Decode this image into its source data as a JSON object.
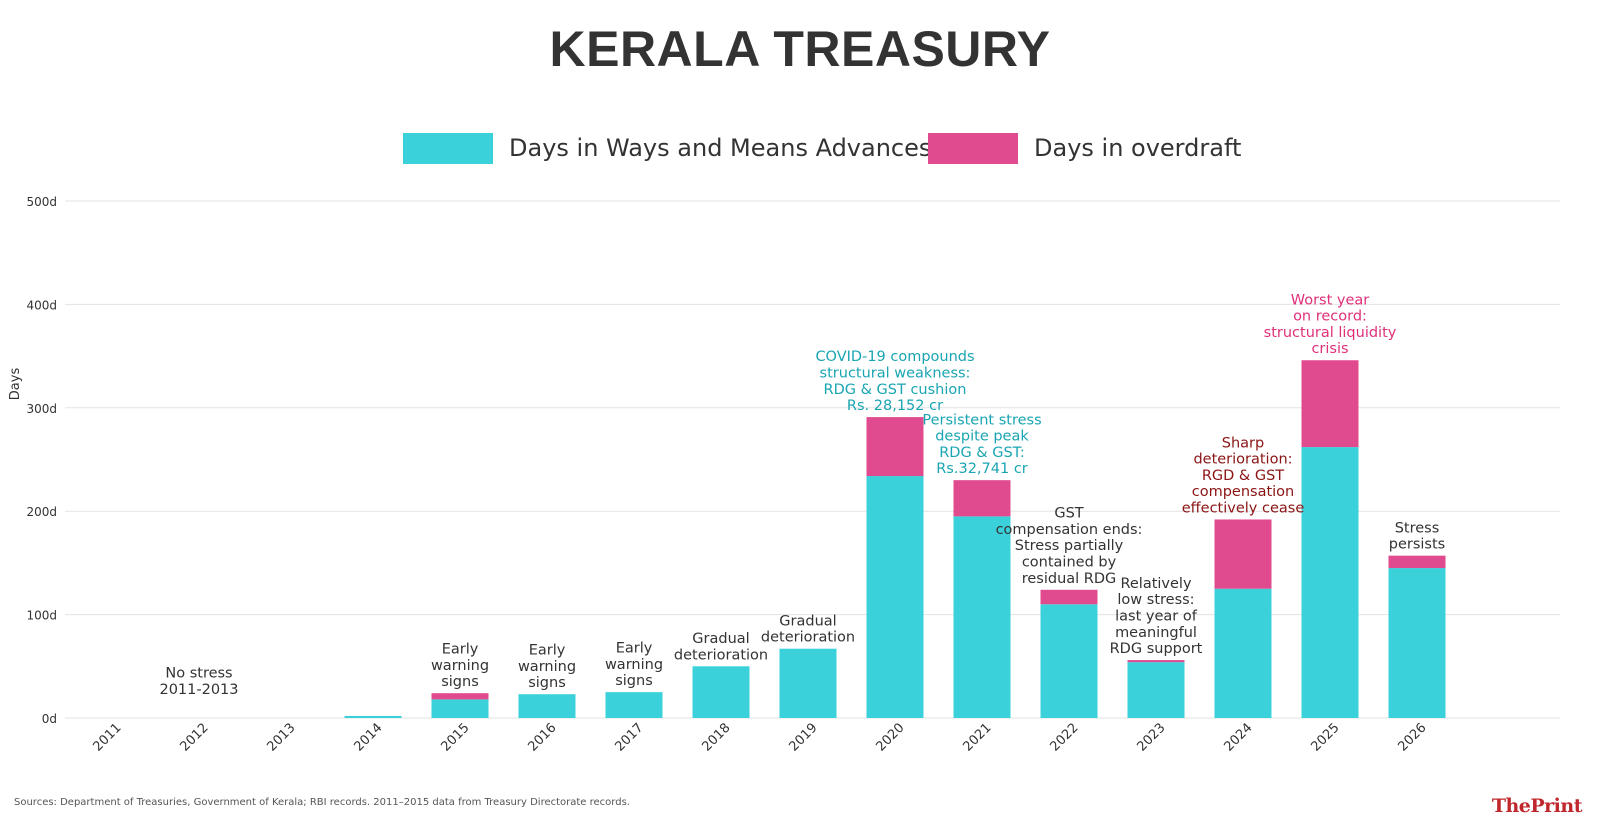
{
  "chart_data": {
    "type": "bar",
    "stacked": true,
    "title": "KERALA TREASURY",
    "ylabel": "Days",
    "ylim": [
      0,
      500
    ],
    "yticks": [
      0,
      100,
      200,
      300,
      400,
      500
    ],
    "ytick_labels": [
      "0d",
      "100d",
      "200d",
      "300d",
      "400d",
      "500d"
    ],
    "grid": true,
    "legend_position": "top-center",
    "categories": [
      "2011",
      "2012",
      "2013",
      "2014",
      "2015",
      "2016",
      "2017",
      "2018",
      "2019",
      "2020",
      "2021",
      "2022",
      "2023",
      "2024",
      "2025",
      "2026"
    ],
    "series": [
      {
        "name": "Days in Ways and Means Advances",
        "color": "#3ad1db",
        "values": [
          0,
          0,
          0,
          2,
          18,
          23,
          25,
          50,
          67,
          234,
          195,
          110,
          54,
          125,
          262,
          145
        ]
      },
      {
        "name": "Days in overdraft",
        "color": "#e04a8e",
        "values": [
          0,
          0,
          0,
          0,
          6,
          0,
          0,
          0,
          0,
          57,
          35,
          14,
          2,
          67,
          84,
          12
        ]
      }
    ],
    "annotations": [
      {
        "category": "2012",
        "color": "#333333",
        "lines": [
          "No stress",
          "2011-2013"
        ]
      },
      {
        "category": "2015",
        "color": "#333333",
        "lines": [
          "Early",
          "warning",
          "signs"
        ]
      },
      {
        "category": "2016",
        "color": "#333333",
        "lines": [
          "Early",
          "warning",
          "signs"
        ]
      },
      {
        "category": "2017",
        "color": "#333333",
        "lines": [
          "Early",
          "warning",
          "signs"
        ]
      },
      {
        "category": "2018",
        "color": "#333333",
        "lines": [
          "Gradual",
          "deterioration"
        ]
      },
      {
        "category": "2019",
        "color": "#333333",
        "lines": [
          "Gradual",
          "deterioration"
        ]
      },
      {
        "category": "2020",
        "color": "#1aa5b2",
        "lines": [
          "COVID-19 compounds",
          "structural weakness:",
          "RDG & GST cushion",
          "Rs. 28,152 cr"
        ]
      },
      {
        "category": "2021",
        "color": "#1aa5b2",
        "lines": [
          "Persistent stress",
          "despite peak",
          "RDG & GST:",
          "Rs.32,741 cr"
        ]
      },
      {
        "category": "2022",
        "color": "#333333",
        "lines": [
          "GST",
          "compensation ends:",
          "Stress partially",
          "contained by",
          "residual RDG"
        ]
      },
      {
        "category": "2023",
        "color": "#333333",
        "lines": [
          "Relatively",
          "low stress:",
          "last year of",
          "meaningful",
          "RDG support"
        ]
      },
      {
        "category": "2024",
        "color": "#8b1414",
        "lines": [
          "Sharp",
          "deterioration:",
          "RGD & GST",
          "compensation",
          "effectively cease"
        ]
      },
      {
        "category": "2025",
        "color": "#e0307a",
        "lines": [
          "Worst year",
          "on record:",
          "structural liquidity",
          "crisis"
        ]
      },
      {
        "category": "2026",
        "color": "#333333",
        "lines": [
          "Stress",
          "persists"
        ]
      }
    ]
  },
  "source_note": "Sources: Department of Treasuries, Government of Kerala; RBI records. 2011–2015 data from Treasury Directorate records.",
  "brand": "ThePrint"
}
